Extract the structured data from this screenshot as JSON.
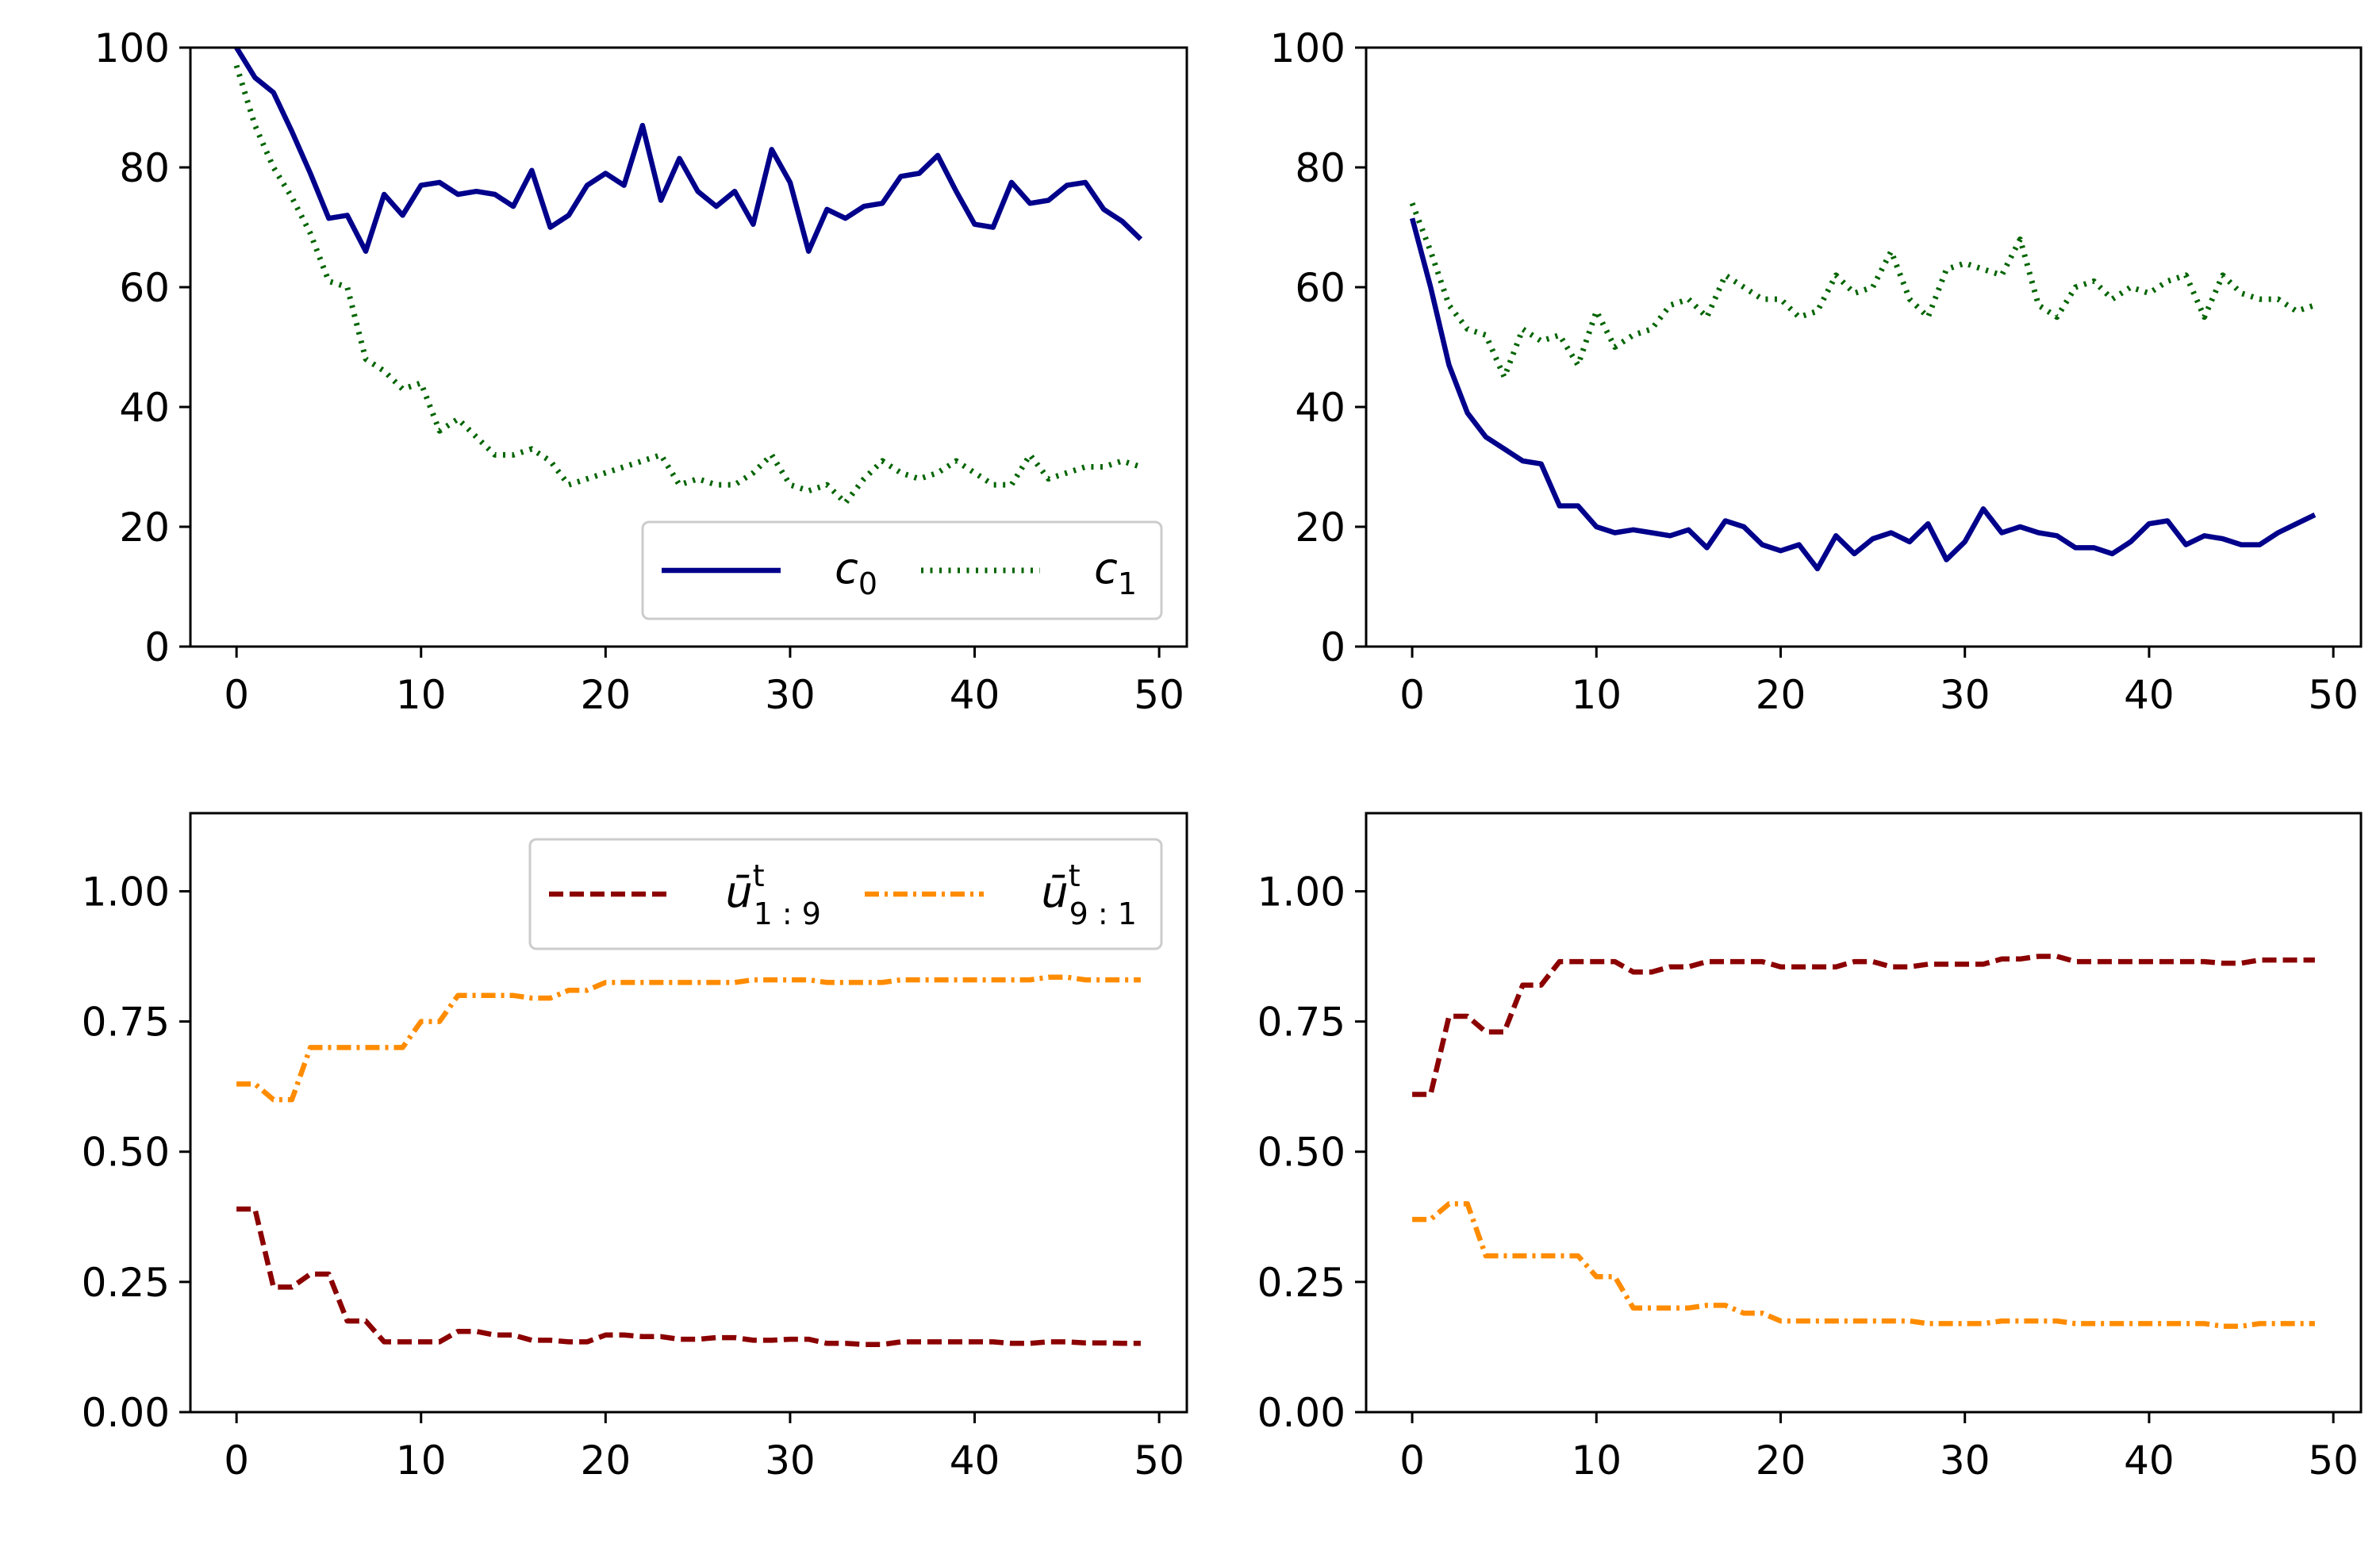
{
  "colors": {
    "c0": "#00008b",
    "c1": "#006400",
    "u19": "#8b0000",
    "u91": "#ff8c00"
  },
  "legends": {
    "top": [
      {
        "base": "c",
        "sub": "0",
        "series": "c0"
      },
      {
        "base": "c",
        "sub": "1",
        "series": "c1"
      }
    ],
    "bottom": [
      {
        "base": "ū",
        "sup": "t",
        "sub": "1 : 9",
        "series": "u19"
      },
      {
        "base": "ū",
        "sup": "t",
        "sub": "9 : 1",
        "series": "u91"
      }
    ]
  },
  "chart_data": [
    {
      "type": "line",
      "panel": "top-left",
      "xlim": [
        -2.5,
        51.5
      ],
      "ylim": [
        0,
        100
      ],
      "xticks": [
        0,
        10,
        20,
        30,
        40,
        50
      ],
      "yticks": [
        0,
        20,
        40,
        60,
        80,
        100
      ],
      "legend": "lower-right",
      "series": [
        {
          "name": "c0",
          "style": "solid",
          "x_start": 0,
          "values": [
            100,
            95,
            92.5,
            86,
            79,
            71.5,
            72,
            66,
            75.5,
            72,
            77,
            77.5,
            75.5,
            76,
            75.5,
            73.5,
            79.5,
            70,
            72,
            77,
            79,
            77,
            87,
            74.5,
            81.5,
            76,
            73.5,
            76,
            70.5,
            83,
            77.5,
            66,
            73,
            71.5,
            73.5,
            74,
            78.5,
            79,
            82,
            76,
            70.5,
            70,
            77.5,
            74,
            74.5,
            77,
            77.5,
            73,
            71,
            68
          ]
        },
        {
          "name": "c1",
          "style": "dotted",
          "x_start": 0,
          "values": [
            97,
            87,
            80,
            75,
            69,
            61,
            60,
            48,
            46,
            43,
            44,
            36,
            38,
            35,
            32,
            32,
            33,
            31,
            27,
            28,
            29,
            30,
            31,
            32,
            27,
            28,
            27,
            27,
            29,
            32,
            27,
            26,
            27,
            24,
            28,
            31,
            29,
            28,
            29,
            31,
            29,
            27,
            27,
            32,
            28,
            29,
            30,
            30,
            31,
            30
          ]
        }
      ]
    },
    {
      "type": "line",
      "panel": "top-right",
      "xlim": [
        -2.5,
        51.5
      ],
      "ylim": [
        0,
        100
      ],
      "xticks": [
        0,
        10,
        20,
        30,
        40,
        50
      ],
      "yticks": [
        0,
        20,
        40,
        60,
        80,
        100
      ],
      "series": [
        {
          "name": "c0",
          "style": "solid",
          "x_start": 0,
          "values": [
            71.5,
            60,
            47,
            39,
            35,
            33,
            31,
            30.5,
            23.5,
            23.5,
            20,
            19,
            19.5,
            19,
            18.5,
            19.5,
            16.5,
            21,
            20,
            17,
            16,
            17,
            13,
            18.5,
            15.5,
            18,
            19,
            17.5,
            20.5,
            14.5,
            17.5,
            23,
            19,
            20,
            19,
            18.5,
            16.5,
            16.5,
            15.5,
            17.5,
            20.5,
            21,
            17,
            18.5,
            18,
            17,
            17,
            19,
            20.5,
            22
          ]
        },
        {
          "name": "c1",
          "style": "dotted",
          "x_start": 0,
          "values": [
            74,
            66,
            57,
            53,
            52,
            45,
            53,
            51,
            52,
            47,
            56,
            50,
            52,
            53,
            57,
            58,
            55,
            62,
            60,
            58,
            58,
            55,
            56,
            62,
            59,
            60,
            66,
            58,
            55,
            63,
            64,
            63,
            62,
            68,
            57,
            55,
            60,
            61,
            58,
            60,
            59,
            61,
            62,
            55,
            62,
            59,
            58,
            58,
            56,
            57
          ]
        }
      ]
    },
    {
      "type": "line",
      "panel": "bottom-left",
      "xlim": [
        -2.5,
        51.5
      ],
      "ylim": [
        0,
        1.15
      ],
      "xticks": [
        0,
        10,
        20,
        30,
        40,
        50
      ],
      "yticks": [
        0.0,
        0.25,
        0.5,
        0.75,
        1.0
      ],
      "ytick_labels": [
        "0.00",
        "0.25",
        "0.50",
        "0.75",
        "1.00"
      ],
      "legend": "upper-right",
      "series": [
        {
          "name": "u19",
          "style": "dashed",
          "x_start": 0,
          "values": [
            0.39,
            0.39,
            0.24,
            0.24,
            0.265,
            0.265,
            0.175,
            0.175,
            0.135,
            0.135,
            0.135,
            0.135,
            0.155,
            0.155,
            0.148,
            0.148,
            0.138,
            0.138,
            0.135,
            0.135,
            0.148,
            0.148,
            0.145,
            0.145,
            0.14,
            0.14,
            0.143,
            0.143,
            0.138,
            0.138,
            0.14,
            0.14,
            0.132,
            0.132,
            0.13,
            0.13,
            0.135,
            0.135,
            0.135,
            0.135,
            0.135,
            0.135,
            0.132,
            0.132,
            0.135,
            0.135,
            0.133,
            0.133,
            0.132,
            0.132
          ]
        },
        {
          "name": "u91",
          "style": "dashdot",
          "x_start": 0,
          "values": [
            0.63,
            0.63,
            0.6,
            0.6,
            0.7,
            0.7,
            0.7,
            0.7,
            0.7,
            0.7,
            0.75,
            0.75,
            0.8,
            0.8,
            0.8,
            0.8,
            0.795,
            0.795,
            0.81,
            0.81,
            0.825,
            0.825,
            0.825,
            0.825,
            0.825,
            0.825,
            0.825,
            0.825,
            0.83,
            0.83,
            0.83,
            0.83,
            0.825,
            0.825,
            0.825,
            0.825,
            0.83,
            0.83,
            0.83,
            0.83,
            0.83,
            0.83,
            0.83,
            0.83,
            0.835,
            0.835,
            0.83,
            0.83,
            0.83,
            0.83
          ]
        }
      ]
    },
    {
      "type": "line",
      "panel": "bottom-right",
      "xlim": [
        -2.5,
        51.5
      ],
      "ylim": [
        0,
        1.15
      ],
      "xticks": [
        0,
        10,
        20,
        30,
        40,
        50
      ],
      "yticks": [
        0.0,
        0.25,
        0.5,
        0.75,
        1.0
      ],
      "ytick_labels": [
        "0.00",
        "0.25",
        "0.50",
        "0.75",
        "1.00"
      ],
      "series": [
        {
          "name": "u19",
          "style": "dashed",
          "x_start": 0,
          "values": [
            0.61,
            0.61,
            0.76,
            0.76,
            0.73,
            0.73,
            0.82,
            0.82,
            0.865,
            0.865,
            0.865,
            0.865,
            0.845,
            0.845,
            0.855,
            0.855,
            0.865,
            0.865,
            0.865,
            0.865,
            0.855,
            0.855,
            0.855,
            0.855,
            0.865,
            0.865,
            0.855,
            0.855,
            0.86,
            0.86,
            0.86,
            0.86,
            0.87,
            0.87,
            0.875,
            0.875,
            0.865,
            0.865,
            0.865,
            0.865,
            0.865,
            0.865,
            0.865,
            0.865,
            0.862,
            0.862,
            0.868,
            0.868,
            0.868,
            0.868
          ]
        },
        {
          "name": "u91",
          "style": "dashdot",
          "x_start": 0,
          "values": [
            0.37,
            0.37,
            0.4,
            0.4,
            0.3,
            0.3,
            0.3,
            0.3,
            0.3,
            0.3,
            0.26,
            0.26,
            0.2,
            0.2,
            0.2,
            0.2,
            0.205,
            0.205,
            0.19,
            0.19,
            0.175,
            0.175,
            0.175,
            0.175,
            0.175,
            0.175,
            0.175,
            0.175,
            0.17,
            0.17,
            0.17,
            0.17,
            0.175,
            0.175,
            0.175,
            0.175,
            0.17,
            0.17,
            0.17,
            0.17,
            0.17,
            0.17,
            0.17,
            0.17,
            0.165,
            0.165,
            0.17,
            0.17,
            0.17,
            0.17
          ]
        }
      ]
    }
  ]
}
